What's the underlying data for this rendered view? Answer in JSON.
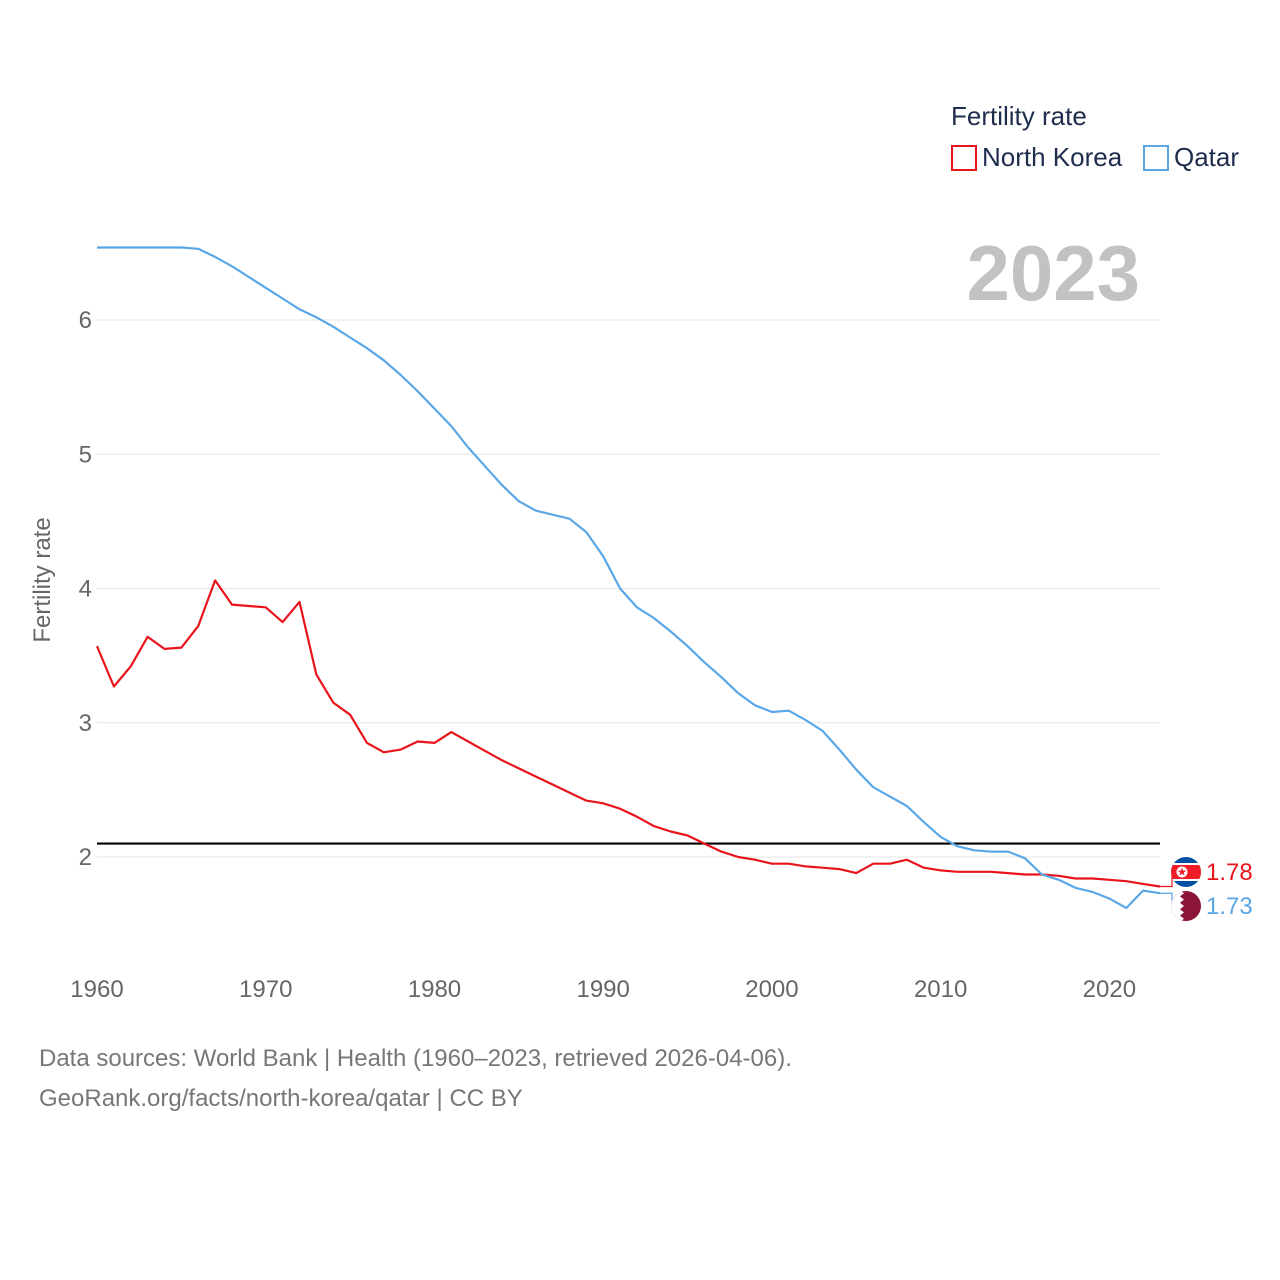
{
  "legend": {
    "title": "Fertility rate",
    "items": [
      {
        "name": "North Korea",
        "color": "#e8141c"
      },
      {
        "name": "Qatar",
        "color": "#5aa7e8"
      }
    ]
  },
  "year_label": "2023",
  "footer": {
    "line1": "Data sources: World Bank | Health (1960–2023, retrieved 2026-04-06).",
    "line2": "GeoRank.org/facts/north-korea/qatar | CC BY"
  },
  "chart_data": {
    "type": "line",
    "title": "Fertility rate",
    "xlabel": "",
    "ylabel": "Fertility rate",
    "xlim": [
      1960,
      2023
    ],
    "ylim": [
      1.35,
      6.6
    ],
    "x_ticks": [
      1960,
      1970,
      1980,
      1990,
      2000,
      2010,
      2020
    ],
    "y_ticks": [
      2,
      3,
      4,
      5,
      6
    ],
    "reference_line": {
      "value": 2.1,
      "color": "#000000"
    },
    "end_labels": {
      "North Korea": "1.78",
      "Qatar": "1.73"
    },
    "series": [
      {
        "name": "North Korea",
        "color": "#e8141c",
        "flag": "north-korea",
        "x": [
          1960,
          1961,
          1962,
          1963,
          1964,
          1965,
          1966,
          1967,
          1968,
          1969,
          1970,
          1971,
          1972,
          1973,
          1974,
          1975,
          1976,
          1977,
          1978,
          1979,
          1980,
          1981,
          1982,
          1983,
          1984,
          1985,
          1986,
          1987,
          1988,
          1989,
          1990,
          1991,
          1992,
          1993,
          1994,
          1995,
          1996,
          1997,
          1998,
          1999,
          2000,
          2001,
          2002,
          2003,
          2004,
          2005,
          2006,
          2007,
          2008,
          2009,
          2010,
          2011,
          2012,
          2013,
          2014,
          2015,
          2016,
          2017,
          2018,
          2019,
          2020,
          2021,
          2022,
          2023
        ],
        "values": [
          3.57,
          3.27,
          3.42,
          3.64,
          3.55,
          3.56,
          3.72,
          4.06,
          3.88,
          3.87,
          3.86,
          3.75,
          3.9,
          3.36,
          3.15,
          3.06,
          2.85,
          2.78,
          2.8,
          2.86,
          2.85,
          2.93,
          2.86,
          2.79,
          2.72,
          2.66,
          2.6,
          2.54,
          2.48,
          2.42,
          2.4,
          2.36,
          2.3,
          2.23,
          2.19,
          2.16,
          2.1,
          2.04,
          2.0,
          1.98,
          1.95,
          1.95,
          1.93,
          1.92,
          1.91,
          1.88,
          1.95,
          1.95,
          1.98,
          1.92,
          1.9,
          1.89,
          1.89,
          1.89,
          1.88,
          1.87,
          1.87,
          1.86,
          1.84,
          1.84,
          1.83,
          1.82,
          1.8,
          1.78
        ]
      },
      {
        "name": "Qatar",
        "color": "#5aa7e8",
        "flag": "qatar",
        "x": [
          1960,
          1961,
          1962,
          1963,
          1964,
          1965,
          1966,
          1967,
          1968,
          1969,
          1970,
          1971,
          1972,
          1973,
          1974,
          1975,
          1976,
          1977,
          1978,
          1979,
          1980,
          1981,
          1982,
          1983,
          1984,
          1985,
          1986,
          1987,
          1988,
          1989,
          1990,
          1991,
          1992,
          1993,
          1994,
          1995,
          1996,
          1997,
          1998,
          1999,
          2000,
          2001,
          2002,
          2003,
          2004,
          2005,
          2006,
          2007,
          2008,
          2009,
          2010,
          2011,
          2012,
          2013,
          2014,
          2015,
          2016,
          2017,
          2018,
          2019,
          2020,
          2021,
          2022,
          2023
        ],
        "values": [
          6.54,
          6.54,
          6.54,
          6.54,
          6.54,
          6.54,
          6.53,
          6.47,
          6.4,
          6.32,
          6.24,
          6.16,
          6.08,
          6.02,
          5.95,
          5.87,
          5.79,
          5.7,
          5.59,
          5.47,
          5.34,
          5.21,
          5.05,
          4.91,
          4.77,
          4.65,
          4.58,
          4.55,
          4.52,
          4.42,
          4.24,
          4.0,
          3.86,
          3.78,
          3.68,
          3.57,
          3.45,
          3.34,
          3.22,
          3.13,
          3.08,
          3.09,
          3.02,
          2.94,
          2.8,
          2.65,
          2.52,
          2.45,
          2.38,
          2.26,
          2.15,
          2.08,
          2.05,
          2.04,
          2.04,
          1.99,
          1.87,
          1.83,
          1.77,
          1.74,
          1.69,
          1.62,
          1.75,
          1.73
        ]
      }
    ]
  }
}
